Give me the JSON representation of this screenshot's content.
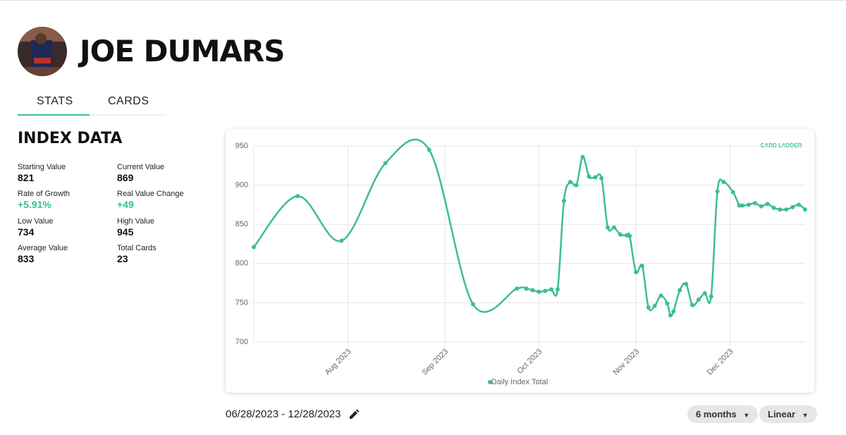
{
  "header": {
    "name": "JOE DUMARS"
  },
  "tabs": [
    "STATS",
    "CARDS"
  ],
  "index_data": {
    "title": "INDEX DATA",
    "stats": [
      {
        "label": "Starting Value",
        "value": "821"
      },
      {
        "label": "Current Value",
        "value": "869"
      },
      {
        "label": "Rate of Growth",
        "value": "+5.91%"
      },
      {
        "label": "Real Value Change",
        "value": "+49"
      },
      {
        "label": "Low Value",
        "value": "734"
      },
      {
        "label": "High Value",
        "value": "945"
      },
      {
        "label": "Average Value",
        "value": "833"
      },
      {
        "label": "Total Cards",
        "value": "23"
      }
    ]
  },
  "chart_data": {
    "type": "line",
    "x": [
      "2023-07-02",
      "2023-07-16",
      "2023-07-30",
      "2023-08-13",
      "2023-08-27",
      "2023-09-10",
      "2023-09-24",
      "2023-09-27",
      "2023-09-29",
      "2023-10-01",
      "2023-10-03",
      "2023-10-05",
      "2023-10-07",
      "2023-10-09",
      "2023-10-11",
      "2023-10-13",
      "2023-10-15",
      "2023-10-17",
      "2023-10-19",
      "2023-10-21",
      "2023-10-23",
      "2023-10-25",
      "2023-10-27",
      "2023-10-29",
      "2023-10-30",
      "2023-11-01",
      "2023-11-03",
      "2023-11-05",
      "2023-11-07",
      "2023-11-09",
      "2023-11-11",
      "2023-11-12",
      "2023-11-13",
      "2023-11-15",
      "2023-11-17",
      "2023-11-19",
      "2023-11-21",
      "2023-11-23",
      "2023-11-25",
      "2023-11-27",
      "2023-11-29",
      "2023-12-02",
      "2023-12-04",
      "2023-12-05",
      "2023-12-07",
      "2023-12-09",
      "2023-12-11",
      "2023-12-13",
      "2023-12-15",
      "2023-12-17",
      "2023-12-19",
      "2023-12-21",
      "2023-12-23",
      "2023-12-25"
    ],
    "series": [
      {
        "name": "Daily Index Total",
        "color": "#3dbf8a",
        "values": [
          821,
          886,
          829,
          928,
          945,
          748,
          768,
          768,
          766,
          764,
          765,
          767,
          767,
          880,
          904,
          900,
          936,
          911,
          910,
          909,
          846,
          846,
          837,
          836,
          835,
          789,
          797,
          744,
          746,
          759,
          749,
          734,
          739,
          766,
          774,
          747,
          754,
          762,
          758,
          892,
          904,
          891,
          874,
          874,
          875,
          877,
          873,
          876,
          871,
          869,
          869,
          872,
          875,
          869
        ]
      }
    ],
    "xlim": [
      "2023-07-02",
      "2023-12-25"
    ],
    "xticks": [
      {
        "value": "2023-08-01",
        "label": "Aug 2023"
      },
      {
        "value": "2023-09-01",
        "label": "Sep 2023"
      },
      {
        "value": "2023-10-01",
        "label": "Oct 2023"
      },
      {
        "value": "2023-11-01",
        "label": "Nov 2023"
      },
      {
        "value": "2023-12-01",
        "label": "Dec 2023"
      }
    ],
    "ylim": [
      700,
      950
    ],
    "yticks": [
      700,
      750,
      800,
      850,
      900,
      950
    ],
    "grid": true,
    "legend": "bottom"
  },
  "logo": "CARD LADDER",
  "date_range": "06/28/2023 - 12/28/2023",
  "controls": [
    "6 months",
    "Linear"
  ]
}
